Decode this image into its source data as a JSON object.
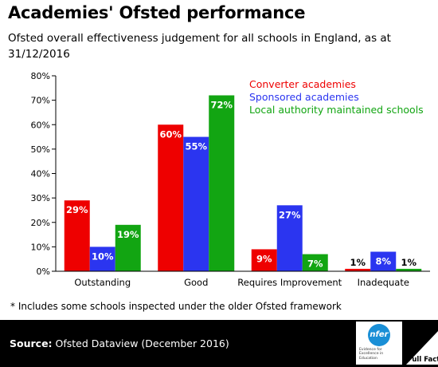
{
  "title": "Academies' Ofsted performance",
  "subtitle": "Ofsted overall effectiveness judgement for all schools in England, as at 31/12/2016",
  "footnote": "* Includes some schools inspected under the older Ofsted framework",
  "footer": {
    "source_label": "Source:",
    "source_text": "Ofsted Dataview (December 2016)",
    "nfer_logo_text": "nfer",
    "nfer_tagline": "Evidence for Excellence in Education",
    "fullfact_logo_text": "Full Fact"
  },
  "colors": {
    "converter": "#ee0000",
    "sponsored": "#2b35f0",
    "local": "#12a512",
    "axis": "#000000"
  },
  "chart_data": {
    "type": "bar",
    "categories": [
      "Outstanding",
      "Good",
      "Requires Improvement",
      "Inadequate"
    ],
    "series": [
      {
        "name": "Converter academies",
        "values": [
          29,
          60,
          9,
          1
        ],
        "labels": [
          "29%",
          "60%",
          "9%",
          "1%"
        ]
      },
      {
        "name": "Sponsored academies",
        "values": [
          10,
          55,
          27,
          8
        ],
        "labels": [
          "10%",
          "55%",
          "27%",
          "8%"
        ]
      },
      {
        "name": "Local authority maintained schools",
        "values": [
          19,
          72,
          7,
          1
        ],
        "labels": [
          "19%",
          "72%",
          "7%",
          "1%"
        ]
      }
    ],
    "ylim": [
      0,
      80
    ],
    "yticks": [
      0,
      10,
      20,
      30,
      40,
      50,
      60,
      70,
      80
    ],
    "ytick_labels": [
      "0%",
      "10%",
      "20%",
      "30%",
      "40%",
      "50%",
      "60%",
      "70%",
      "80%"
    ],
    "grid": false,
    "legend_position": "top-right"
  }
}
